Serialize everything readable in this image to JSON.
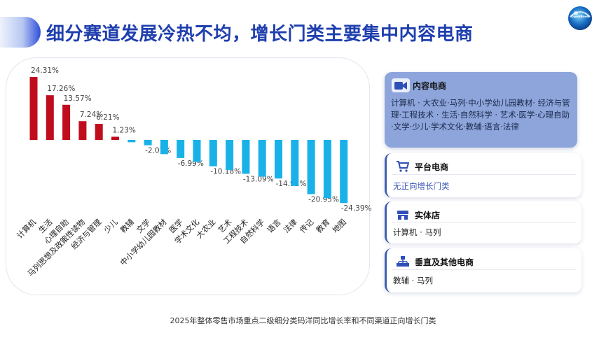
{
  "title": "细分赛道发展冷热不均，增长门类主要集中内容电商",
  "logo_text": "OpenBook",
  "caption": "2025年整体零售市场重点二级细分类码洋同比增长率和不同渠道正向增长门类",
  "cards": {
    "content": {
      "title": "内容电商",
      "icon": "video-camera-icon",
      "body": "计算机 · 大农业·马列·中小学幼儿园教材· 经济与管理·工程技术 · 生活·自然科学 · 艺术·医学·心理自助·文学·少儿·学术文化·教辅·语言·法律"
    },
    "platform": {
      "title": "平台电商",
      "icon": "shopping-cart-icon",
      "body": "无正向增长门类"
    },
    "physical": {
      "title": "实体店",
      "icon": "store-icon",
      "body": "计算机 · 马列"
    },
    "vertical": {
      "title": "垂直及其他电商",
      "icon": "network-icon",
      "body": "教辅 · 马列"
    }
  },
  "colors": {
    "positive": "#c00d1e",
    "negative": "#19b2e8",
    "title": "#1f3fae",
    "card_main": "#8ea5dc"
  },
  "chart_data": {
    "type": "bar",
    "title": "",
    "xlabel": "",
    "ylabel": "",
    "categories": [
      "计算机",
      "生活",
      "心理自助",
      "马列思想及政策性读物",
      "经济与管理",
      "少儿",
      "教辅",
      "文学",
      "中小学幼儿园教材",
      "医学",
      "学术文化",
      "大农业",
      "艺术",
      "工程技术",
      "自然科学",
      "语言",
      "法律",
      "传记",
      "教育",
      "地图"
    ],
    "values": [
      24.31,
      17.26,
      13.57,
      7.24,
      6.21,
      1.23,
      -0.9,
      -2.07,
      -5.5,
      -6.99,
      -8.5,
      -10.18,
      -11.6,
      -13.09,
      -14.2,
      -14.91,
      -17.8,
      -20.95,
      -22.5,
      -24.39
    ],
    "data_labels": [
      "24.31%",
      "17.26%",
      "13.57%",
      "7.24%",
      "6.21%",
      "1.23%",
      "",
      "-2.07%",
      "",
      "-6.99%",
      "",
      "-10.18%",
      "",
      "-13.09%",
      "",
      "-14.91%",
      "",
      "-20.95%",
      "",
      "-24.39%"
    ],
    "ylim": [
      -25,
      25
    ],
    "grid": false,
    "legend": "none"
  }
}
